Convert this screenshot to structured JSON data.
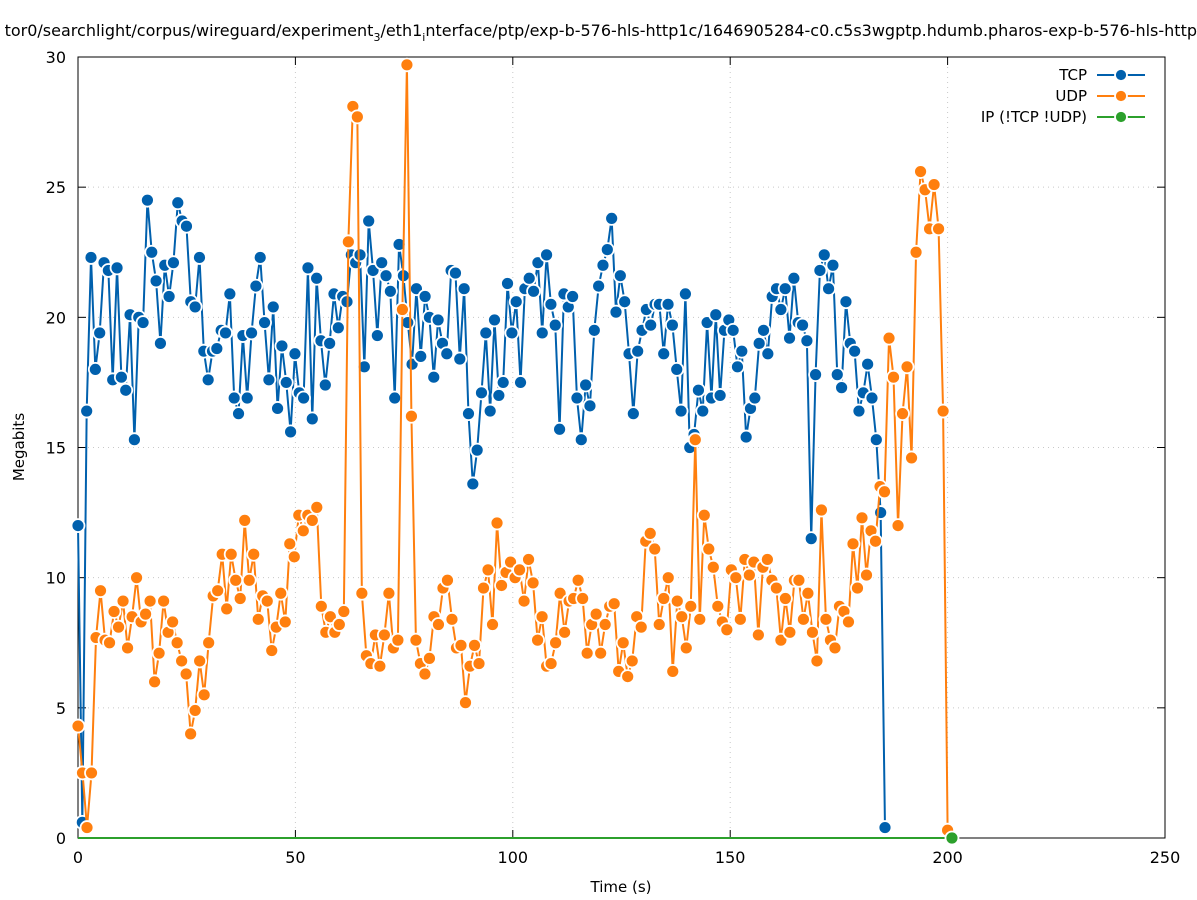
{
  "chart_data": {
    "type": "line",
    "title_parts": [
      {
        "text": "tor0/searchlight/corpus/wireguard/experiment",
        "sub": false
      },
      {
        "text": "3",
        "sub": true
      },
      {
        "text": "/eth1",
        "sub": false
      },
      {
        "text": "i",
        "sub": true
      },
      {
        "text": "nterface/ptp/exp-b-576-hls-http1c/1646905284-c0.c5s3wgptp.hdumb.pharos-exp-b-576-hls-http",
        "sub": false
      }
    ],
    "xlabel": "Time (s)",
    "ylabel": "Megabits",
    "xlim": [
      0,
      250
    ],
    "ylim": [
      0,
      30
    ],
    "xticks": [
      "0",
      "50",
      "100",
      "150",
      "200",
      "250"
    ],
    "yticks": [
      "0",
      "5",
      "10",
      "15",
      "20",
      "25",
      "30"
    ],
    "grid": true,
    "legend_position": "top-right",
    "series": [
      {
        "name": "TCP",
        "color": "#0060ad",
        "x_start": 0,
        "x_end": 185.6,
        "values": [
          12.0,
          0.6,
          16.4,
          22.3,
          18.0,
          19.4,
          22.1,
          21.8,
          17.6,
          21.9,
          17.7,
          17.2,
          20.1,
          15.3,
          20.0,
          19.8,
          24.5,
          22.5,
          21.4,
          19.0,
          22.0,
          20.8,
          22.1,
          24.4,
          23.7,
          23.5,
          20.6,
          20.4,
          22.3,
          18.7,
          17.6,
          18.7,
          18.8,
          19.5,
          19.4,
          20.9,
          16.9,
          16.3,
          19.3,
          16.9,
          19.4,
          21.2,
          22.3,
          19.8,
          17.6,
          20.4,
          16.5,
          18.9,
          17.5,
          15.6,
          18.6,
          17.1,
          16.9,
          21.9,
          16.1,
          21.5,
          19.1,
          17.4,
          19.0,
          20.9,
          19.6,
          20.8,
          20.6,
          22.4,
          22.1,
          22.4,
          18.1,
          23.7,
          21.8,
          19.3,
          22.1,
          21.6,
          21.0,
          16.9,
          22.8,
          21.6,
          19.8,
          18.2,
          21.1,
          18.5,
          20.8,
          20.0,
          17.7,
          19.9,
          19.0,
          18.6,
          21.8,
          21.7,
          18.4,
          21.1,
          16.3,
          13.6,
          14.9,
          17.1,
          19.4,
          16.4,
          19.9,
          17.0,
          17.5,
          21.3,
          19.4,
          20.6,
          17.5,
          21.1,
          21.5,
          21.0,
          22.1,
          19.4,
          22.4,
          20.5,
          19.7,
          15.7,
          20.9,
          20.4,
          20.8,
          16.9,
          15.3,
          17.4,
          16.6,
          19.5,
          21.2,
          22.0,
          22.6,
          23.8,
          20.2,
          21.6,
          20.6,
          18.6,
          16.3,
          18.7,
          19.5,
          20.3,
          19.7,
          20.5,
          20.5,
          18.6,
          20.5,
          19.7,
          18.0,
          16.4,
          20.9,
          15.0,
          15.5,
          17.2,
          16.4,
          19.8,
          16.9,
          20.1,
          17.0,
          19.5,
          19.9,
          19.5,
          18.1,
          18.7,
          15.4,
          16.5,
          16.9,
          19.0,
          19.5,
          18.6,
          20.8,
          21.1,
          20.3,
          21.1,
          19.2,
          21.5,
          19.8,
          19.7,
          19.1,
          11.5,
          17.8,
          21.8,
          22.4,
          21.1,
          22.0,
          17.8,
          17.3,
          20.6,
          19.0,
          18.7,
          16.4,
          17.1,
          18.2,
          16.9,
          15.3,
          12.5,
          0.4
        ]
      },
      {
        "name": "UDP",
        "color": "#ff7f0e",
        "x_start": 0,
        "x_end": 200,
        "values": [
          4.3,
          2.5,
          0.4,
          2.5,
          7.7,
          9.5,
          7.6,
          7.5,
          8.7,
          8.1,
          9.1,
          7.3,
          8.5,
          10.0,
          8.3,
          8.6,
          9.1,
          6.0,
          7.1,
          9.1,
          7.9,
          8.3,
          7.5,
          6.8,
          6.3,
          4.0,
          4.9,
          6.8,
          5.5,
          7.5,
          9.3,
          9.5,
          10.9,
          8.8,
          10.9,
          9.9,
          9.2,
          12.2,
          9.9,
          10.9,
          8.4,
          9.3,
          9.1,
          7.2,
          8.1,
          9.4,
          8.3,
          11.3,
          10.8,
          12.4,
          11.8,
          12.4,
          12.2,
          12.7,
          8.9,
          7.9,
          8.5,
          7.9,
          8.2,
          8.7,
          22.9,
          28.1,
          27.7,
          9.4,
          7.0,
          6.7,
          7.8,
          6.6,
          7.8,
          9.4,
          7.3,
          7.6,
          20.3,
          29.7,
          16.2,
          7.6,
          6.7,
          6.3,
          6.9,
          8.5,
          8.2,
          9.6,
          9.9,
          8.4,
          7.3,
          7.4,
          5.2,
          6.6,
          7.4,
          6.7,
          9.6,
          10.3,
          8.2,
          12.1,
          9.7,
          10.2,
          10.6,
          10.0,
          10.3,
          9.1,
          10.7,
          9.8,
          7.6,
          8.5,
          6.6,
          6.7,
          7.5,
          9.4,
          7.9,
          9.1,
          9.2,
          9.9,
          9.2,
          7.1,
          8.2,
          8.6,
          7.1,
          8.2,
          8.9,
          9.0,
          6.4,
          7.5,
          6.2,
          6.8,
          8.5,
          8.1,
          11.4,
          11.7,
          11.1,
          8.2,
          9.2,
          10.0,
          6.4,
          9.1,
          8.5,
          7.3,
          8.9,
          15.3,
          8.4,
          12.4,
          11.1,
          10.4,
          8.9,
          8.3,
          8.0,
          10.3,
          10.0,
          8.4,
          10.7,
          10.1,
          10.6,
          7.8,
          10.4,
          10.7,
          9.9,
          9.6,
          7.6,
          9.2,
          7.9,
          9.9,
          9.9,
          8.4,
          9.4,
          7.9,
          6.8,
          12.6,
          8.4,
          7.6,
          7.3,
          8.9,
          8.7,
          8.3,
          11.3,
          9.6,
          12.3,
          10.1,
          11.8,
          11.4,
          13.5,
          13.3,
          19.2,
          17.7,
          12.0,
          16.3,
          18.1,
          14.6,
          22.5,
          25.6,
          24.9,
          23.4,
          25.1,
          23.4,
          16.4,
          0.3
        ]
      },
      {
        "name": "IP (!TCP  !UDP)",
        "color": "#2ca02c",
        "x_start": 0,
        "x_end": 201,
        "values": [
          0,
          0
        ]
      }
    ]
  }
}
